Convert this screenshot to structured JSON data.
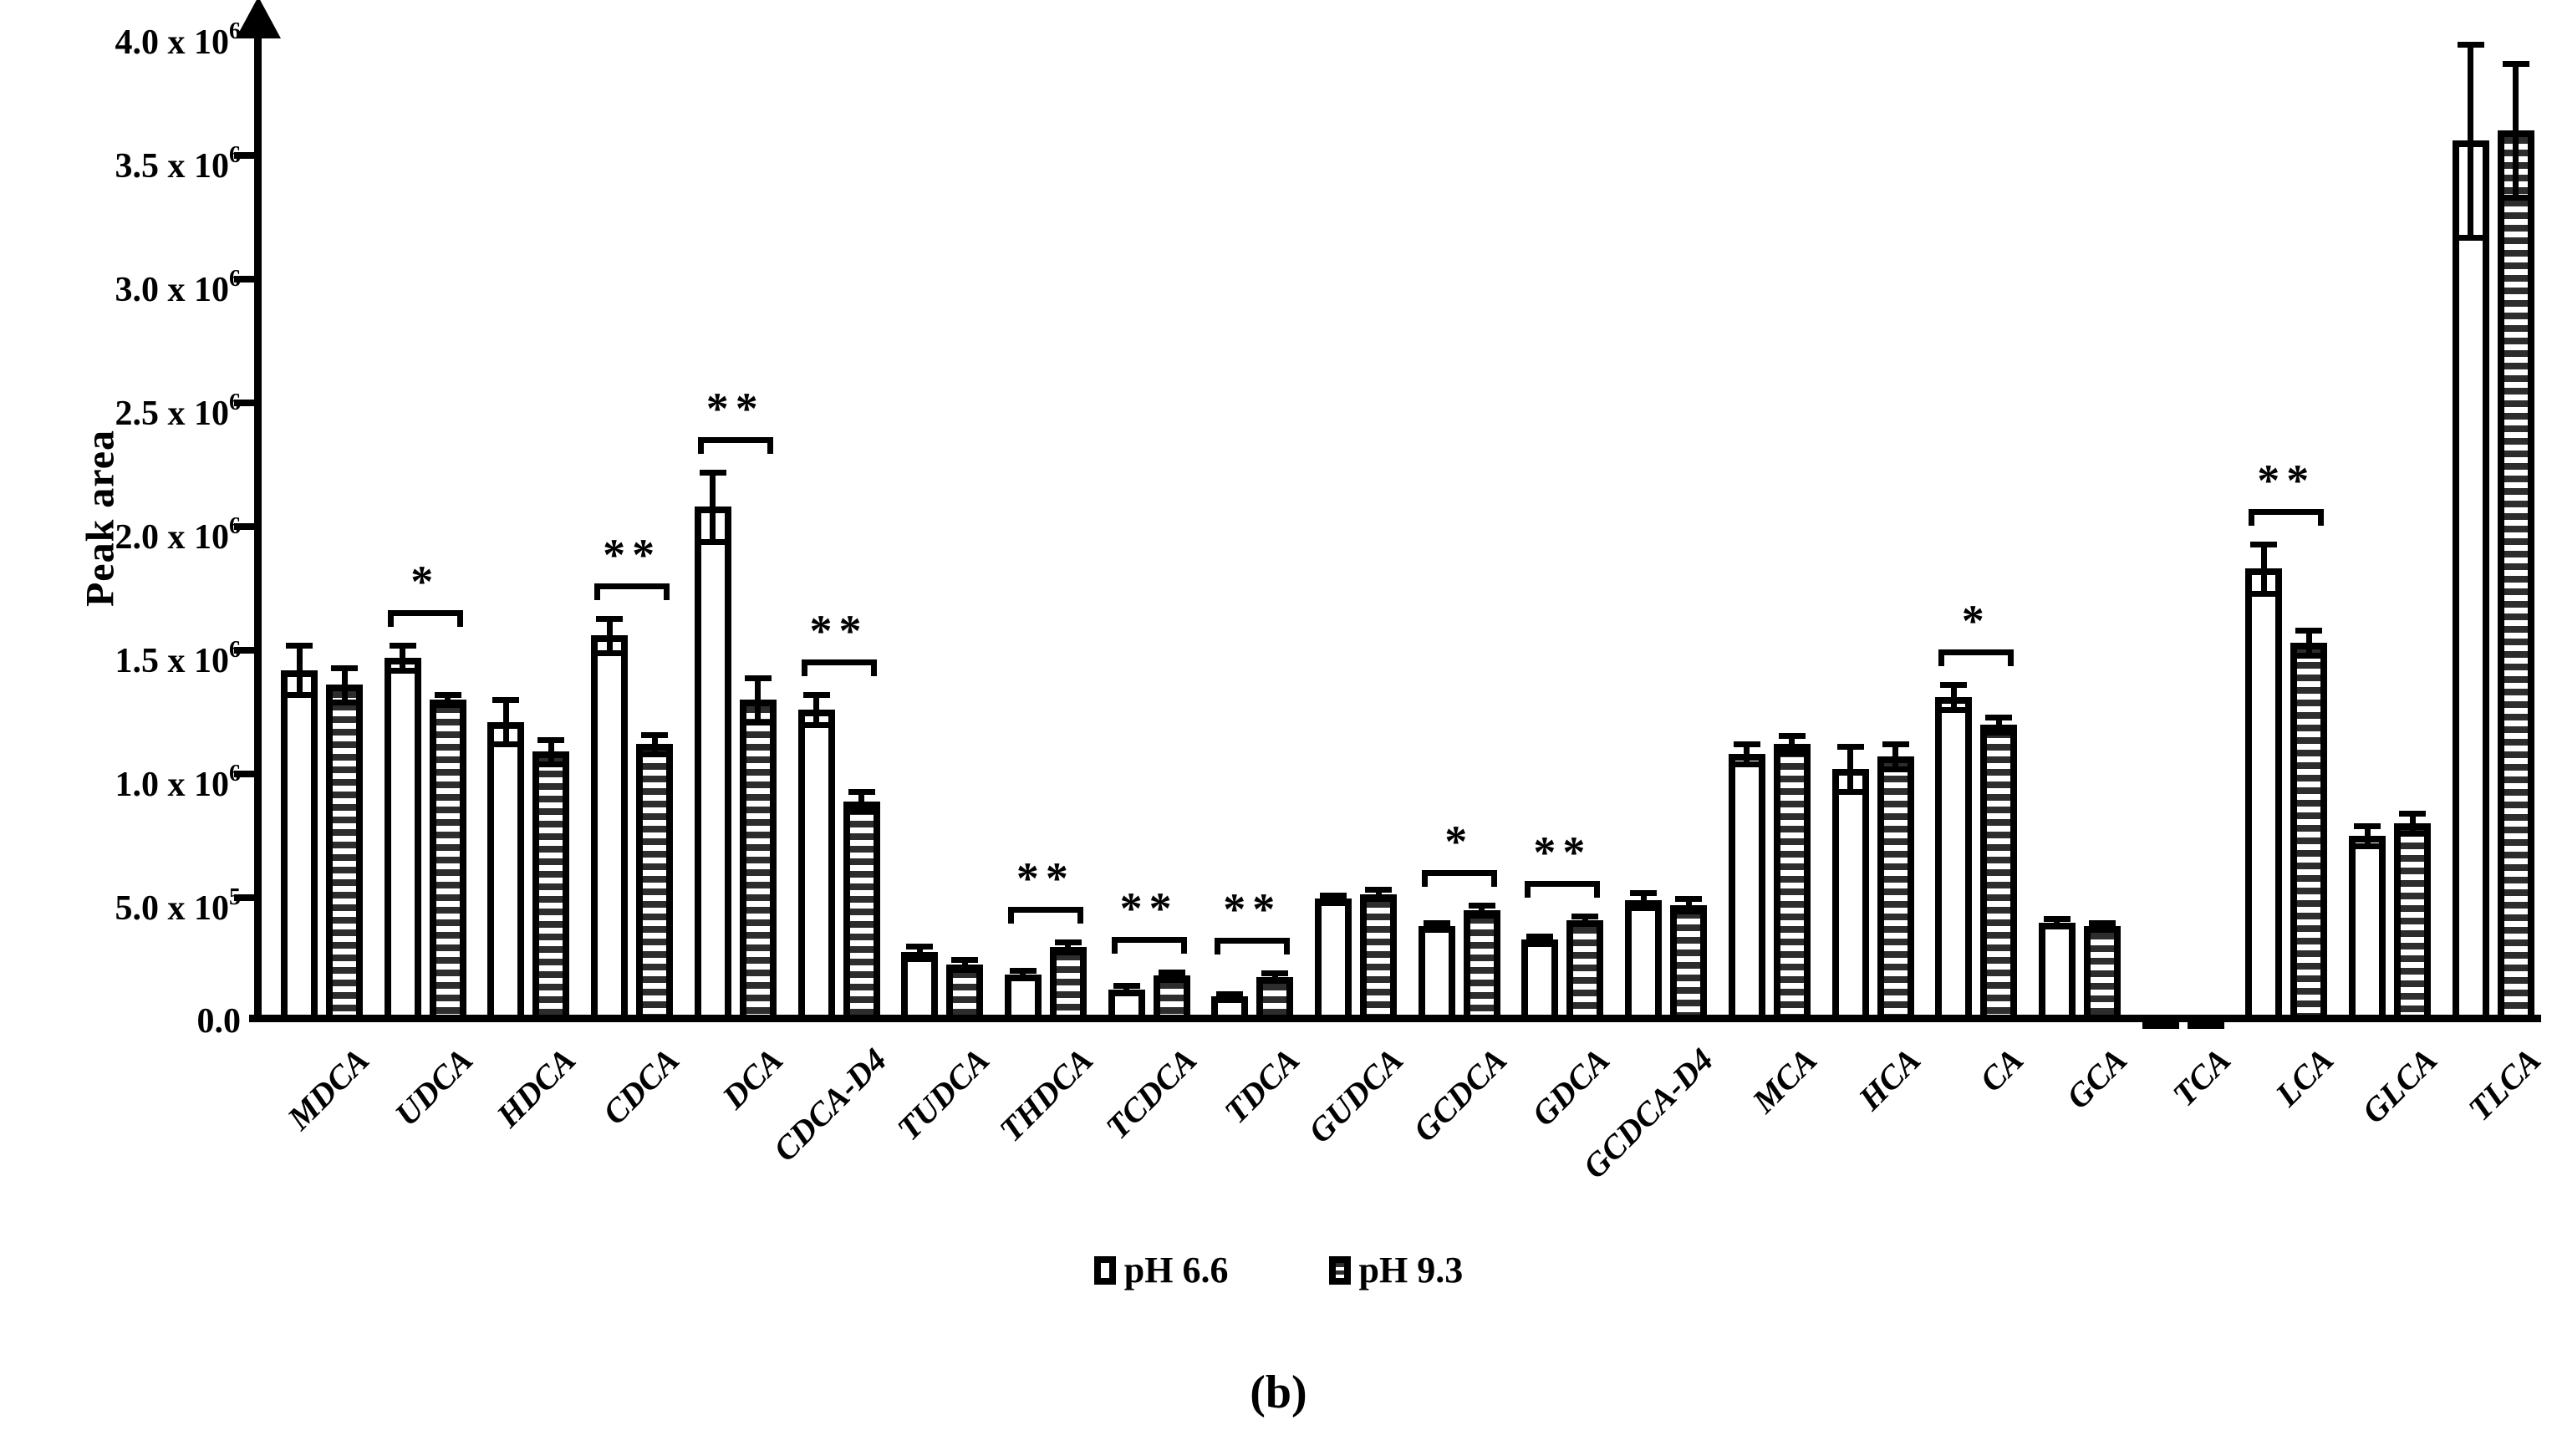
{
  "figure": {
    "caption": "(b)"
  },
  "legend": {
    "items": [
      {
        "label": "pH 6.6",
        "swatch": "white"
      },
      {
        "label": "pH 9.3",
        "swatch": "hatched"
      }
    ]
  },
  "colors": {
    "bar_fill": "#ffffff",
    "bar_border": "#000000",
    "hatch_stripe": "#2d2d2d",
    "axis": "#000000"
  },
  "chart_data": {
    "type": "bar",
    "title": "",
    "xlabel": "",
    "ylabel": "Peak area",
    "ylim": [
      0,
      4000000
    ],
    "grid": false,
    "legend_position": "bottom",
    "ytick_values": [
      0,
      500000,
      1000000,
      1500000,
      2000000,
      2500000,
      3000000,
      3500000,
      4000000
    ],
    "ytick_labels": [
      [
        "0.0",
        ""
      ],
      [
        "5.0 x 10",
        "5"
      ],
      [
        "1.0 x 10",
        "6"
      ],
      [
        "1.5 x 10",
        "6"
      ],
      [
        "2.0 x 10",
        "6"
      ],
      [
        "2.5 x 10",
        "6"
      ],
      [
        "3.0 x 10",
        "6"
      ],
      [
        "3.5 x 10",
        "6"
      ],
      [
        "4.0 x 10",
        "6"
      ]
    ],
    "categories": [
      "MDCA",
      "UDCA",
      "HDCA",
      "CDCA",
      "DCA",
      "CDCA-D4",
      "TUDCA",
      "THDCA",
      "TCDCA",
      "TDCA",
      "GUDCA",
      "GCDCA",
      "GDCA",
      "GCDCA-D4",
      "MCA",
      "HCA",
      "CA",
      "GCA",
      "TCA",
      "LCA",
      "GLCA",
      "TLCA"
    ],
    "series": [
      {
        "name": "pH 6.6",
        "style": "white",
        "values": [
          1420000,
          1470000,
          1210000,
          1560000,
          2080000,
          1260000,
          280000,
          190000,
          130000,
          100000,
          495000,
          385000,
          330000,
          490000,
          1080000,
          1020000,
          1310000,
          400000,
          25000,
          1830000,
          750000,
          3560000
        ],
        "errors": [
          100000,
          50000,
          90000,
          70000,
          140000,
          60000,
          25000,
          15000,
          15000,
          10000,
          15000,
          15000,
          15000,
          30000,
          40000,
          90000,
          50000,
          15000,
          0,
          100000,
          40000,
          390000
        ]
      },
      {
        "name": "pH 9.3",
        "style": "hatched",
        "values": [
          1360000,
          1300000,
          1090000,
          1120000,
          1300000,
          890000,
          230000,
          300000,
          185000,
          180000,
          515000,
          450000,
          410000,
          470000,
          1120000,
          1070000,
          1200000,
          385000,
          25000,
          1530000,
          800000,
          3600000
        ],
        "errors": [
          70000,
          20000,
          50000,
          40000,
          90000,
          40000,
          20000,
          20000,
          15000,
          15000,
          20000,
          20000,
          15000,
          25000,
          35000,
          50000,
          30000,
          15000,
          0,
          50000,
          40000,
          270000
        ]
      }
    ],
    "significance": [
      "",
      "*",
      "",
      "**",
      "**",
      "**",
      "",
      "**",
      "**",
      "**",
      "",
      "*",
      "**",
      "",
      "",
      "",
      "*",
      "",
      "",
      "**",
      "",
      ""
    ]
  }
}
